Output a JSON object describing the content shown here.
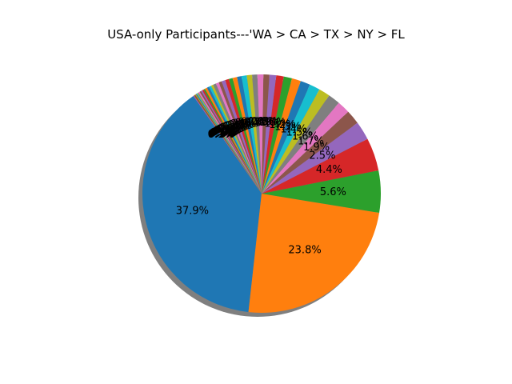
{
  "chart_data": {
    "type": "pie",
    "title": "USA-only Participants---'WA > CA > TX > NY > FL",
    "shadow": true,
    "start_angle_deg": 125,
    "direction": "counterclockwise",
    "values": [
      37.9,
      23.8,
      5.6,
      4.4,
      2.5,
      1.9,
      1.7,
      1.6,
      1.5,
      1.4,
      1.3,
      1.2,
      1.1,
      1.0,
      0.9,
      0.8,
      0.8,
      0.7,
      0.7,
      0.7,
      0.6,
      0.6,
      0.5,
      0.5,
      0.5,
      0.4,
      0.4,
      0.4,
      0.3,
      0.3,
      0.3,
      0.3,
      0.2,
      0.2,
      0.2,
      0.2,
      0.2,
      0.1,
      0.1,
      0.1,
      0.1,
      0.1,
      0.1,
      0.1,
      0.1
    ],
    "labels": [
      "37.9%",
      "23.8%",
      "5.6%",
      "4.4%",
      "2.5%",
      "1.9%",
      "1.7%",
      "1.6%",
      "1.5%",
      "1.4%",
      "1.3%",
      "1.2%",
      "1.1%",
      "1.0%",
      "0.9%",
      "0.8%",
      "0.8%",
      "0.7%",
      "0.7%",
      "0.7%",
      "0.6%",
      "0.6%",
      "0.5%",
      "0.5%",
      "0.5%",
      "0.4%",
      "0.4%",
      "0.4%",
      "0.3%",
      "0.3%",
      "0.3%",
      "0.3%",
      "0.2%",
      "0.2%",
      "0.2%",
      "0.2%",
      "0.2%",
      "0.1%",
      "0.1%",
      "0.1%",
      "0.1%",
      "0.1%",
      "0.1%",
      "0.1%",
      "0.1%"
    ],
    "colors": [
      "#1f77b4",
      "#ff7f0e",
      "#2ca02c",
      "#d62728",
      "#9467bd",
      "#8c564b",
      "#e377c2",
      "#7f7f7f",
      "#bcbd22",
      "#17becf"
    ]
  }
}
